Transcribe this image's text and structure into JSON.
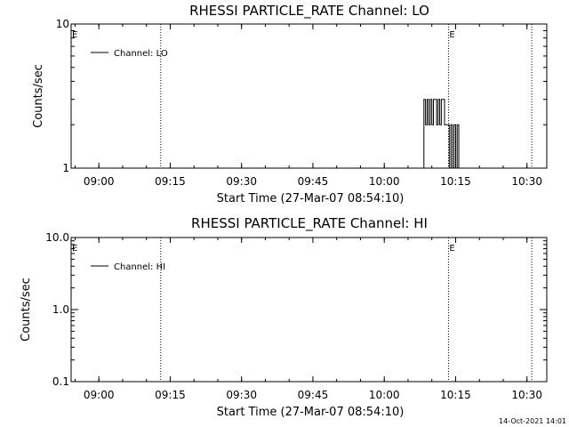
{
  "footer": {
    "timestamp": "14-Oct-2021 14:01"
  },
  "chart_data": [
    {
      "type": "line",
      "title": "RHESSI PARTICLE_RATE Channel: LO",
      "xlabel": "Start Time (27-Mar-07 08:54:10)",
      "ylabel": "Counts/sec",
      "yscale": "log",
      "ylim": [
        1,
        10
      ],
      "ytick_labels": [
        "1",
        "10"
      ],
      "xtick_labels": [
        "09:00",
        "09:15",
        "09:30",
        "09:45",
        "10:00",
        "10:15",
        "10:30"
      ],
      "xlim": [
        "08:54:10",
        "10:34:10"
      ],
      "legend": {
        "position": "top-left",
        "entries": [
          "Channel: LO"
        ]
      },
      "markers": [
        {
          "label": "E",
          "time": "08:54:10",
          "style": "none"
        },
        {
          "time": "09:13:00",
          "style": "dotted"
        },
        {
          "label": "E",
          "time": "10:13:30",
          "style": "dotted"
        },
        {
          "time": "10:31:00",
          "style": "dotted"
        }
      ],
      "series": [
        {
          "name": "Channel: LO",
          "points": [
            [
              "10:08:00",
              1
            ],
            [
              "10:08:20",
              3
            ],
            [
              "10:08:40",
              2
            ],
            [
              "10:09:00",
              3
            ],
            [
              "10:09:20",
              2
            ],
            [
              "10:09:40",
              3
            ],
            [
              "10:10:00",
              2
            ],
            [
              "10:10:20",
              3
            ],
            [
              "10:10:40",
              3
            ],
            [
              "10:11:00",
              2
            ],
            [
              "10:11:20",
              3
            ],
            [
              "10:11:40",
              2
            ],
            [
              "10:12:00",
              3
            ],
            [
              "10:12:20",
              3
            ],
            [
              "10:12:40",
              2
            ],
            [
              "10:13:00",
              2
            ],
            [
              "10:13:20",
              2
            ],
            [
              "10:13:40",
              1
            ],
            [
              "10:14:00",
              2
            ],
            [
              "10:14:20",
              1
            ],
            [
              "10:14:40",
              2
            ],
            [
              "10:15:00",
              1
            ],
            [
              "10:15:20",
              2
            ],
            [
              "10:15:40",
              1
            ]
          ]
        }
      ]
    },
    {
      "type": "line",
      "title": "RHESSI PARTICLE_RATE Channel: HI",
      "xlabel": "Start Time (27-Mar-07 08:54:10)",
      "ylabel": "Counts/sec",
      "yscale": "log",
      "ylim": [
        0.1,
        10
      ],
      "ytick_labels": [
        "0.1",
        "1.0",
        "10.0"
      ],
      "xtick_labels": [
        "09:00",
        "09:15",
        "09:30",
        "09:45",
        "10:00",
        "10:15",
        "10:30"
      ],
      "xlim": [
        "08:54:10",
        "10:34:10"
      ],
      "legend": {
        "position": "top-left",
        "entries": [
          "Channel: HI"
        ]
      },
      "markers": [
        {
          "label": "E",
          "time": "08:54:10",
          "style": "none"
        },
        {
          "time": "09:13:00",
          "style": "dotted"
        },
        {
          "label": "E",
          "time": "10:13:30",
          "style": "dotted"
        },
        {
          "time": "10:31:00",
          "style": "dotted"
        }
      ],
      "series": [
        {
          "name": "Channel: HI",
          "points": []
        }
      ]
    }
  ]
}
